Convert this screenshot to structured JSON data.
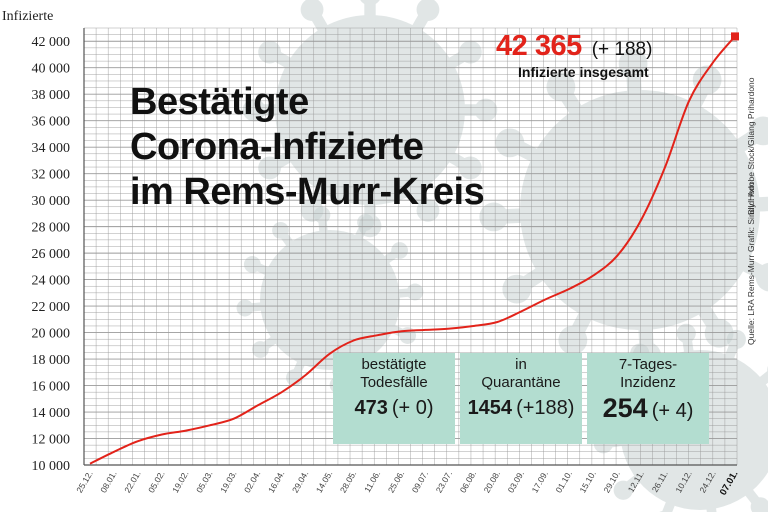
{
  "colors": {
    "line": "#e2231a",
    "grid": "#9a9a9a",
    "box_bg": "#b3ddd0",
    "virus": "#c9d3d3"
  },
  "title_lines": [
    "Bestätigte",
    "Corona-Infizierte",
    "im Rems-Murr-Kreis"
  ],
  "headline": {
    "total": "42 365",
    "delta": "(+ 188)",
    "label": "Infizierte insgesamt"
  },
  "boxes": [
    {
      "label_lines": [
        "bestätigte",
        "Todesfälle"
      ],
      "value": "473",
      "delta": "(+ 0)"
    },
    {
      "label_lines": [
        "in",
        "Quarantäne"
      ],
      "value": "1454",
      "delta": "(+188)"
    },
    {
      "label_lines": [
        "7-Tages-",
        "Inzidenz"
      ],
      "value": "254",
      "delta": "(+ 4)"
    }
  ],
  "credits": [
    "Bild: Adobe Stock/Gilang Prihardono",
    "Grafik: Sindy Horn",
    "Quelle: LRA Rems-Murr"
  ],
  "chart_data": {
    "type": "line",
    "ylabel": "Infizierte",
    "ylim": [
      10000,
      43000
    ],
    "y_ticks": [
      10000,
      12000,
      14000,
      16000,
      18000,
      20000,
      22000,
      24000,
      26000,
      28000,
      30000,
      32000,
      34000,
      36000,
      38000,
      40000,
      42000
    ],
    "y_tick_labels": [
      "10 000",
      "12 000",
      "14 000",
      "16 000",
      "18 000",
      "20 000",
      "22 000",
      "24 000",
      "26 000",
      "28 000",
      "30 000",
      "32 000",
      "34 000",
      "36 000",
      "38 000",
      "40 000",
      "42 000"
    ],
    "x_tick_labels": [
      "25.12.",
      "08.01.",
      "22.01.",
      "05.02.",
      "19.02.",
      "05.03.",
      "19.03.",
      "02.04.",
      "16.04.",
      "29.04.",
      "14.05.",
      "28.05.",
      "11.06.",
      "25.06.",
      "09.07.",
      "23.07.",
      "06.08.",
      "20.08.",
      "03.09.",
      "17.09.",
      "01.10.",
      "15.10.",
      "29.10.",
      "12.11.",
      "26.11.",
      "10.12.",
      "24.12.",
      "07.01."
    ],
    "series": [
      {
        "x": [
          "25.12.",
          "08.01.",
          "22.01.",
          "05.02.",
          "19.02.",
          "05.03.",
          "19.03.",
          "02.04.",
          "16.04.",
          "29.04.",
          "14.05.",
          "28.05.",
          "11.06.",
          "25.06.",
          "09.07.",
          "23.07.",
          "06.08.",
          "20.08.",
          "03.09.",
          "17.09.",
          "01.10.",
          "15.10.",
          "29.10.",
          "12.11.",
          "26.11.",
          "10.12.",
          "24.12.",
          "07.01."
        ],
        "y": [
          10100,
          11000,
          11800,
          12300,
          12600,
          13000,
          13500,
          14500,
          15500,
          16800,
          18400,
          19400,
          19800,
          20100,
          20200,
          20300,
          20500,
          20800,
          21600,
          22500,
          23300,
          24300,
          25800,
          28500,
          32500,
          37500,
          40400,
          42365
        ]
      }
    ],
    "last_point": {
      "x": "07.01.",
      "y": 42365
    },
    "grid": true
  }
}
